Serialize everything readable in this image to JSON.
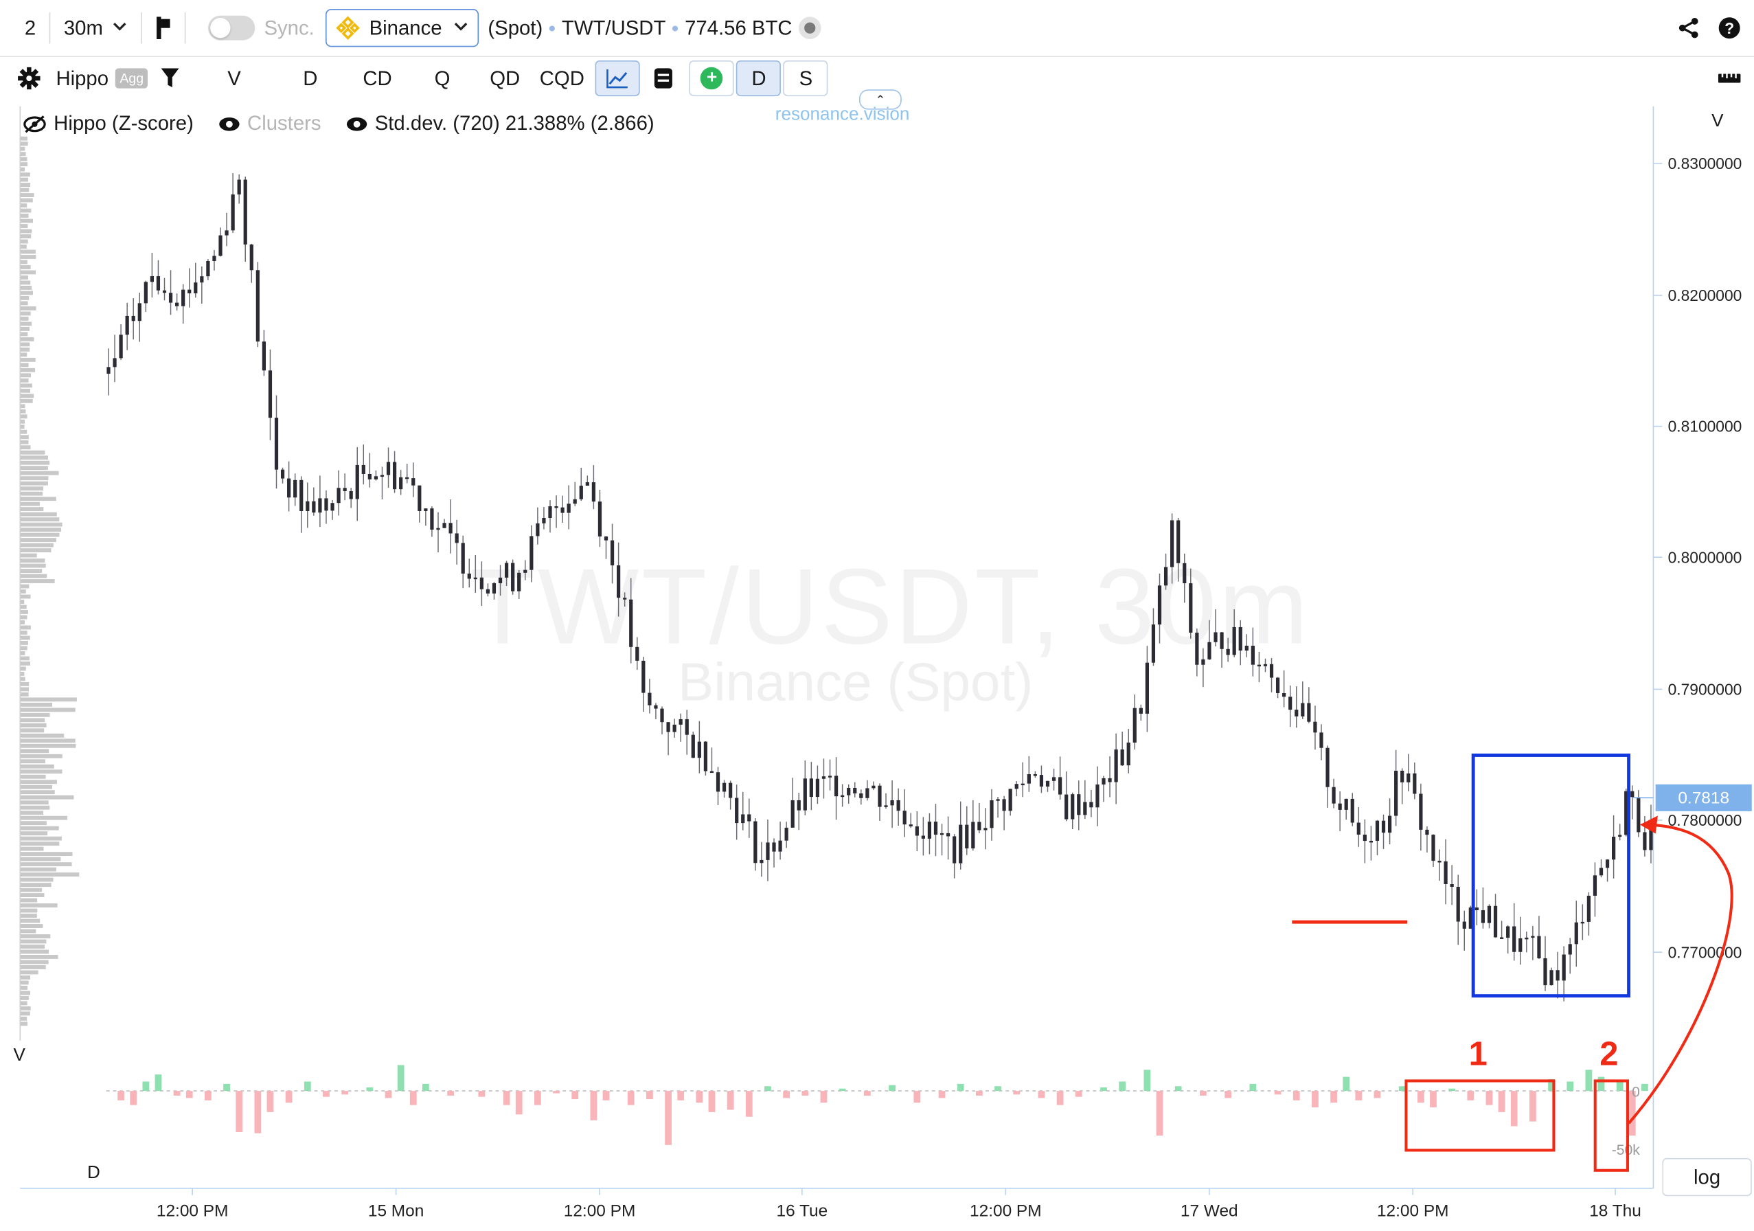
{
  "topbar": {
    "layout_count": "2",
    "interval": "30m",
    "sync_label": "Sync.",
    "exchange": "Binance",
    "market": "(Spot)",
    "symbol": "TWT/USDT",
    "volume": "774.56 BTC"
  },
  "toolbar": {
    "indicator": "Hippo",
    "agg_label": "Agg",
    "buttons": [
      "V",
      "D",
      "CD",
      "Q",
      "QD",
      "CQD"
    ],
    "d_toggle": "D",
    "s_toggle": "S"
  },
  "legend": {
    "items": [
      "Hippo (Z-score)",
      "Clusters",
      "Std.dev. (720) 21.388% (2.866)"
    ]
  },
  "branding": "resonance.vision",
  "watermark": {
    "title": "TWT/USDT, 30m",
    "subtitle": "Binance (Spot)"
  },
  "axis_labels": {
    "price_axis": "V",
    "volume_profile": "V",
    "delta_panel": "D"
  },
  "log_button": "log",
  "annotations": [
    "1",
    "2"
  ],
  "colors": {
    "candle": "#2b2b33",
    "delta_pos": "#8fe0b0",
    "delta_neg": "#f8b4b8",
    "annotation": "#f02b15",
    "box": "#1138e0",
    "price_badge": "#7fb1ea",
    "profile": "#c8c8c8"
  },
  "chart_data": {
    "type": "ohlc",
    "title": "TWT/USDT, 30m",
    "subtitle": "Binance (Spot)",
    "y_ticks": [
      "0.8300000",
      "0.8200000",
      "0.8100000",
      "0.8000000",
      "0.7900000",
      "0.7800000",
      "0.7700000"
    ],
    "ylim": [
      0.7595,
      0.8355
    ],
    "x_ticks": [
      "12:00 PM",
      "15 Mon",
      "12:00 PM",
      "16 Tue",
      "12:00 PM",
      "17 Wed",
      "12:00 PM",
      "18 Thu"
    ],
    "current_price": "0.7818",
    "delta_ticks": [
      "0",
      "-50k"
    ],
    "price_path": [
      [
        0,
        0.814
      ],
      [
        7,
        0.8215
      ],
      [
        12,
        0.82
      ],
      [
        17,
        0.823
      ],
      [
        21,
        0.829
      ],
      [
        24,
        0.817
      ],
      [
        27,
        0.807
      ],
      [
        31,
        0.804
      ],
      [
        36,
        0.804
      ],
      [
        42,
        0.807
      ],
      [
        48,
        0.806
      ],
      [
        55,
        0.801
      ],
      [
        60,
        0.7985
      ],
      [
        65,
        0.7985
      ],
      [
        72,
        0.804
      ],
      [
        77,
        0.806
      ],
      [
        82,
        0.798
      ],
      [
        86,
        0.789
      ],
      [
        91,
        0.787
      ],
      [
        96,
        0.785
      ],
      [
        101,
        0.781
      ],
      [
        105,
        0.777
      ],
      [
        108,
        0.779
      ],
      [
        112,
        0.782
      ],
      [
        117,
        0.783
      ],
      [
        122,
        0.7825
      ],
      [
        127,
        0.781
      ],
      [
        132,
        0.779
      ],
      [
        136,
        0.778
      ],
      [
        140,
        0.78
      ],
      [
        145,
        0.782
      ],
      [
        149,
        0.784
      ],
      [
        154,
        0.781
      ],
      [
        159,
        0.782
      ],
      [
        163,
        0.785
      ],
      [
        166,
        0.789
      ],
      [
        169,
        0.797
      ],
      [
        171,
        0.802
      ],
      [
        173,
        0.797
      ],
      [
        175,
        0.792
      ],
      [
        179,
        0.794
      ],
      [
        184,
        0.793
      ],
      [
        189,
        0.79
      ],
      [
        193,
        0.787
      ],
      [
        197,
        0.782
      ],
      [
        201,
        0.779
      ],
      [
        205,
        0.78
      ],
      [
        208,
        0.784
      ],
      [
        211,
        0.78
      ],
      [
        214,
        0.776
      ],
      [
        217,
        0.773
      ],
      [
        221,
        0.773
      ],
      [
        225,
        0.771
      ],
      [
        229,
        0.77
      ],
      [
        232,
        0.768
      ],
      [
        235,
        0.77
      ],
      [
        238,
        0.775
      ],
      [
        242,
        0.778
      ],
      [
        244,
        0.782
      ],
      [
        247,
        0.779
      ]
    ],
    "delta_values": [
      [
        2,
        -8
      ],
      [
        4,
        -12
      ],
      [
        6,
        8
      ],
      [
        8,
        14
      ],
      [
        11,
        -4
      ],
      [
        13,
        -6
      ],
      [
        16,
        -8
      ],
      [
        19,
        6
      ],
      [
        21,
        -35
      ],
      [
        24,
        -36
      ],
      [
        26,
        -18
      ],
      [
        29,
        -10
      ],
      [
        32,
        8
      ],
      [
        35,
        -5
      ],
      [
        38,
        -3
      ],
      [
        42,
        3
      ],
      [
        45,
        -6
      ],
      [
        47,
        22
      ],
      [
        49,
        -12
      ],
      [
        51,
        6
      ],
      [
        55,
        -4
      ],
      [
        60,
        -5
      ],
      [
        64,
        -12
      ],
      [
        66,
        -20
      ],
      [
        69,
        -12
      ],
      [
        72,
        -2
      ],
      [
        75,
        -7
      ],
      [
        78,
        -25
      ],
      [
        80,
        -8
      ],
      [
        84,
        -12
      ],
      [
        87,
        -7
      ],
      [
        90,
        -46
      ],
      [
        92,
        -8
      ],
      [
        95,
        -10
      ],
      [
        97,
        -18
      ],
      [
        100,
        -16
      ],
      [
        103,
        -22
      ],
      [
        106,
        4
      ],
      [
        109,
        -6
      ],
      [
        112,
        -4
      ],
      [
        115,
        -10
      ],
      [
        118,
        2
      ],
      [
        122,
        -4
      ],
      [
        126,
        5
      ],
      [
        130,
        -10
      ],
      [
        134,
        -6
      ],
      [
        137,
        6
      ],
      [
        140,
        -4
      ],
      [
        143,
        4
      ],
      [
        146,
        -3
      ],
      [
        150,
        -6
      ],
      [
        153,
        -12
      ],
      [
        156,
        -5
      ],
      [
        160,
        3
      ],
      [
        163,
        8
      ],
      [
        167,
        18
      ],
      [
        169,
        -38
      ],
      [
        172,
        4
      ],
      [
        176,
        -4
      ],
      [
        180,
        -6
      ],
      [
        184,
        6
      ],
      [
        188,
        -3
      ],
      [
        191,
        -8
      ],
      [
        194,
        -14
      ],
      [
        197,
        -10
      ],
      [
        199,
        12
      ],
      [
        201,
        -8
      ],
      [
        204,
        -6
      ],
      [
        208,
        4
      ],
      [
        211,
        -10
      ],
      [
        213,
        -14
      ],
      [
        216,
        2
      ],
      [
        219,
        -8
      ],
      [
        222,
        -12
      ],
      [
        224,
        -18
      ],
      [
        226,
        -30
      ],
      [
        229,
        -26
      ],
      [
        232,
        10
      ],
      [
        235,
        8
      ],
      [
        238,
        18
      ],
      [
        240,
        12
      ],
      [
        243,
        8
      ],
      [
        245,
        -38
      ],
      [
        247,
        6
      ]
    ]
  }
}
